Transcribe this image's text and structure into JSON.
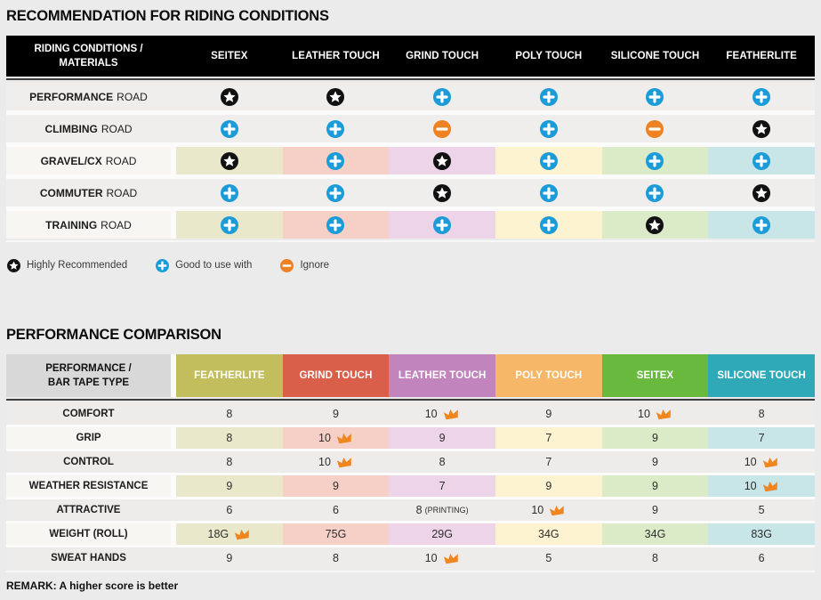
{
  "section1": {
    "title": "RECOMMENDATION FOR RIDING CONDITIONS",
    "table": {
      "header": {
        "label_line1": "RIDING CONDITIONS /",
        "label_line2": "MATERIALS",
        "columns": [
          "SEITEX",
          "LEATHER TOUCH",
          "GRIND TOUCH",
          "POLY TOUCH",
          "SILICONE TOUCH",
          "FEATHERLITE"
        ]
      },
      "rows": [
        {
          "label_bold": "PERFORMANCE",
          "label_rest": "ROAD",
          "tinted": false,
          "cells": [
            "star",
            "star",
            "plus",
            "plus",
            "plus",
            "plus"
          ]
        },
        {
          "label_bold": "CLIMBING",
          "label_rest": "ROAD",
          "tinted": false,
          "cells": [
            "plus",
            "plus",
            "minus",
            "plus",
            "minus",
            "star"
          ]
        },
        {
          "label_bold": "GRAVEL/CX",
          "label_rest": "ROAD",
          "tinted": true,
          "cells": [
            "star",
            "plus",
            "star",
            "plus",
            "plus",
            "plus"
          ]
        },
        {
          "label_bold": "COMMUTER",
          "label_rest": "ROAD",
          "tinted": false,
          "cells": [
            "plus",
            "plus",
            "star",
            "plus",
            "plus",
            "star"
          ]
        },
        {
          "label_bold": "TRAINING",
          "label_rest": "ROAD",
          "tinted": true,
          "cells": [
            "plus",
            "plus",
            "plus",
            "plus",
            "star",
            "plus"
          ]
        }
      ]
    },
    "legend": [
      {
        "icon": "star",
        "label": "Highly Recommended"
      },
      {
        "icon": "plus",
        "label": "Good to use with"
      },
      {
        "icon": "minus",
        "label": "Ignore"
      }
    ]
  },
  "section2": {
    "title": "PERFORMANCE COMPARISON",
    "table": {
      "header": {
        "label_line1": "PERFORMANCE /",
        "label_line2": "BAR TAPE TYPE",
        "columns": [
          {
            "label": "FEATHERLITE",
            "color": "#c2be5e"
          },
          {
            "label": "GRIND TOUCH",
            "color": "#d95f4b"
          },
          {
            "label": "LEATHER TOUCH",
            "color": "#c284bd"
          },
          {
            "label": "POLY TOUCH",
            "color": "#f6b768"
          },
          {
            "label": "SEITEX",
            "color": "#69b93f"
          },
          {
            "label": "SILICONE TOUCH",
            "color": "#2fa9b7"
          }
        ]
      },
      "rows": [
        {
          "label": "COMFORT",
          "tinted": false,
          "cells": [
            {
              "value": "8"
            },
            {
              "value": "9"
            },
            {
              "value": "10",
              "crown": true
            },
            {
              "value": "9"
            },
            {
              "value": "10",
              "crown": true
            },
            {
              "value": "8"
            }
          ]
        },
        {
          "label": "GRIP",
          "tinted": true,
          "cells": [
            {
              "value": "8"
            },
            {
              "value": "10",
              "crown": true
            },
            {
              "value": "9"
            },
            {
              "value": "7"
            },
            {
              "value": "9"
            },
            {
              "value": "7"
            }
          ]
        },
        {
          "label": "CONTROL",
          "tinted": false,
          "cells": [
            {
              "value": "8"
            },
            {
              "value": "10",
              "crown": true
            },
            {
              "value": "8"
            },
            {
              "value": "7"
            },
            {
              "value": "9"
            },
            {
              "value": "10",
              "crown": true
            }
          ]
        },
        {
          "label": "WEATHER RESISTANCE",
          "tinted": true,
          "cells": [
            {
              "value": "9"
            },
            {
              "value": "9"
            },
            {
              "value": "7"
            },
            {
              "value": "9"
            },
            {
              "value": "9"
            },
            {
              "value": "10",
              "crown": true
            }
          ]
        },
        {
          "label": "ATTRACTIVE",
          "tinted": false,
          "cells": [
            {
              "value": "6"
            },
            {
              "value": "6"
            },
            {
              "value": "8",
              "suffix": "(PRINTING)"
            },
            {
              "value": "10",
              "crown": true
            },
            {
              "value": "9"
            },
            {
              "value": "5"
            }
          ]
        },
        {
          "label": "WEIGHT (ROLL)",
          "tinted": true,
          "cells": [
            {
              "value": "18G",
              "crown": true
            },
            {
              "value": "75G"
            },
            {
              "value": "29G"
            },
            {
              "value": "34G"
            },
            {
              "value": "34G"
            },
            {
              "value": "83G"
            }
          ]
        },
        {
          "label": "SWEAT HANDS",
          "tinted": false,
          "cells": [
            {
              "value": "9"
            },
            {
              "value": "8"
            },
            {
              "value": "10",
              "crown": true
            },
            {
              "value": "5"
            },
            {
              "value": "8"
            },
            {
              "value": "6"
            }
          ]
        }
      ]
    },
    "remark": "REMARK: A higher score is better"
  },
  "icon_meanings": {
    "star": "highly-recommended",
    "plus": "good-to-use-with",
    "minus": "ignore",
    "crown": "best-in-row"
  },
  "palette": {
    "star_black": "#111111",
    "plus_blue": "#1b9bd8",
    "minus_orange": "#ee8122",
    "crown_orange": "#f0861f",
    "header_black": "#000000",
    "t2_label_header_bg": "#d8d8d8",
    "tinted_label_bg": "#f7f6f3",
    "column_tints": [
      "#eae8cb",
      "#f6d0c7",
      "#edd4e8",
      "#fdf3d1",
      "#dbeac7",
      "#c8e5e8"
    ]
  }
}
